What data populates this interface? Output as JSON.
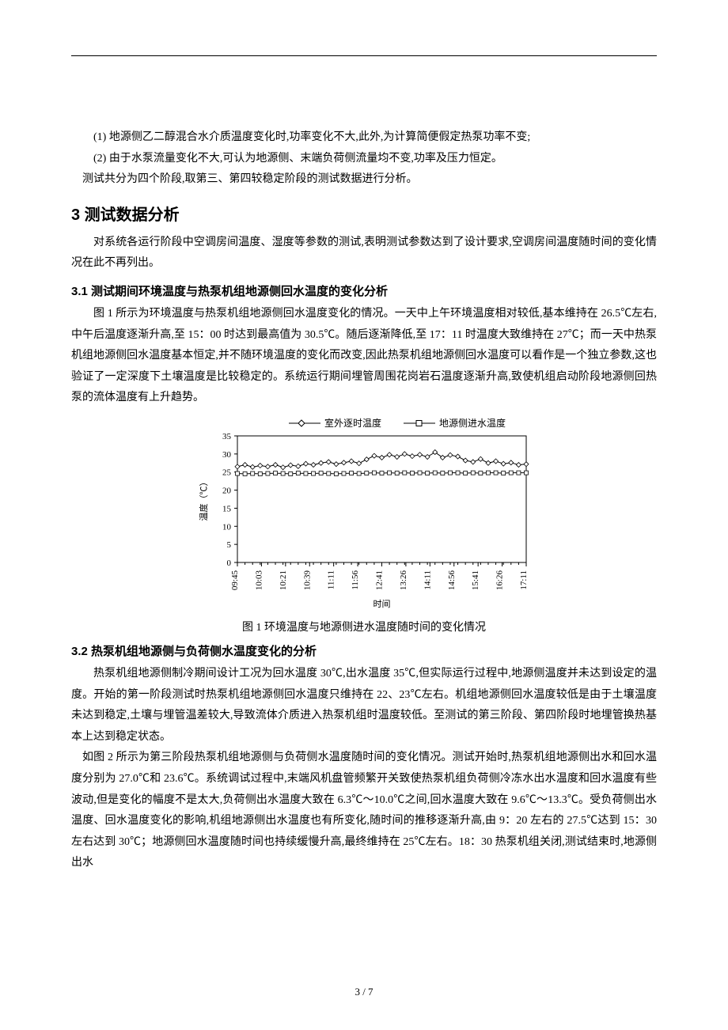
{
  "items": {
    "i1": "(1) 地源侧乙二醇混合水介质温度变化时,功率变化不大,此外,为计算简便假定热泵功率不变;",
    "i2": "(2) 由于水泵流量变化不大,可认为地源侧、末端负荷侧流量均不变,功率及压力恒定。",
    "i3": "测试共分为四个阶段,取第三、第四较稳定阶段的测试数据进行分析。"
  },
  "sec3": {
    "title": "3 测试数据分析"
  },
  "p1": "对系统各运行阶段中空调房间温度、湿度等参数的测试,表明测试参数达到了设计要求,空调房间温度随时间的变化情况在此不再列出。",
  "sec31": {
    "title": "3.1 测试期间环境温度与热泵机组地源侧回水温度的变化分析"
  },
  "p2": "图 1 所示为环境温度与热泵机组地源侧回水温度变化的情况。一天中上午环境温度相对较低,基本维持在 26.5℃左右,中午后温度逐渐升高,至 15：00 时达到最高值为 30.5℃。随后逐渐降低,至 17：11 时温度大致维持在 27℃；而一天中热泵机组地源侧回水温度基本恒定,并不随环境温度的变化而改变,因此热泵机组地源侧回水温度可以看作是一个独立参数,这也验证了一定深度下土壤温度是比较稳定的。系统运行期间埋管周围花岗岩石温度逐渐升高,致使机组启动阶段地源侧回热泵的流体温度有上升趋势。",
  "chart1": {
    "type": "line",
    "legend": {
      "s1": "室外逐时温度",
      "s2": "地源侧进水温度"
    },
    "xlabel": "时间",
    "ylabel": "温度（℃）",
    "ylim": [
      0,
      35
    ],
    "ytick_step": 5,
    "xticks": [
      "09:45",
      "10:03",
      "10:21",
      "10:39",
      "11:11",
      "11:56",
      "12:41",
      "13:26",
      "14:11",
      "14:56",
      "15:41",
      "16:26",
      "17:11"
    ],
    "series1": {
      "marker": "diamond",
      "color": "#000000",
      "values": [
        26.5,
        27.0,
        26.4,
        26.8,
        26.5,
        27.0,
        26.3,
        26.9,
        26.6,
        27.3,
        27.0,
        27.5,
        27.8,
        27.2,
        27.6,
        28.0,
        27.4,
        28.5,
        29.5,
        29.0,
        29.8,
        29.2,
        30.0,
        29.4,
        29.8,
        29.2,
        30.5,
        29.0,
        29.7,
        29.3,
        28.2,
        27.8,
        28.6,
        27.5,
        28.0,
        27.3,
        27.6,
        27.0,
        27.2
      ]
    },
    "series2": {
      "marker": "square",
      "color": "#000000",
      "values": [
        24.6,
        24.5,
        24.6,
        24.5,
        24.6,
        24.7,
        24.6,
        24.5,
        24.7,
        24.6,
        24.6,
        24.7,
        24.6,
        24.5,
        24.6,
        24.7,
        24.6,
        24.7,
        24.8,
        24.7,
        24.8,
        24.7,
        24.8,
        24.7,
        24.8,
        24.7,
        24.8,
        24.7,
        24.8,
        24.8,
        24.7,
        24.8,
        24.7,
        24.8,
        24.8,
        24.7,
        24.8,
        24.8,
        24.8
      ]
    },
    "background_color": "#ffffff",
    "tick_color": "#000000",
    "font_size_axis": 11,
    "font_size_legend": 12
  },
  "caption1": "图 1 环境温度与地源侧进水温度随时间的变化情况",
  "sec32": {
    "title": "3.2 热泵机组地源侧与负荷侧水温度变化的分析"
  },
  "p3": "热泵机组地源侧制冷期间设计工况为回水温度 30℃,出水温度 35℃,但实际运行过程中,地源侧温度并未达到设定的温度。开始的第一阶段测试时热泵机组地源侧回水温度只维持在 22、23℃左右。机组地源侧回水温度较低是由于土壤温度未达到稳定,土壤与埋管温差较大,导致流体介质进入热泵机组时温度较低。至测试的第三阶段、第四阶段时地埋管换热基本上达到稳定状态。",
  "p4": "如图 2 所示为第三阶段热泵机组地源侧与负荷侧水温度随时间的变化情况。测试开始时,热泵机组地源侧出水和回水温度分别为 27.0℃和 23.6℃。系统调试过程中,末端风机盘管频繁开关致使热泵机组负荷侧冷冻水出水温度和回水温度有些波动,但是变化的幅度不是太大,负荷侧出水温度大致在 6.3℃～10.0℃之间,回水温度大致在 9.6℃～13.3℃。受负荷侧出水温度、回水温度变化的影响,机组地源侧出水温度也有所变化,随时间的推移逐渐升高,由 9：20 左右的 27.5℃达到 15：30 左右达到 30℃；地源侧回水温度随时间也持续缓慢升高,最终维持在 25℃左右。18：30 热泵机组关闭,测试结束时,地源侧出水",
  "pagenum": "3 / 7"
}
